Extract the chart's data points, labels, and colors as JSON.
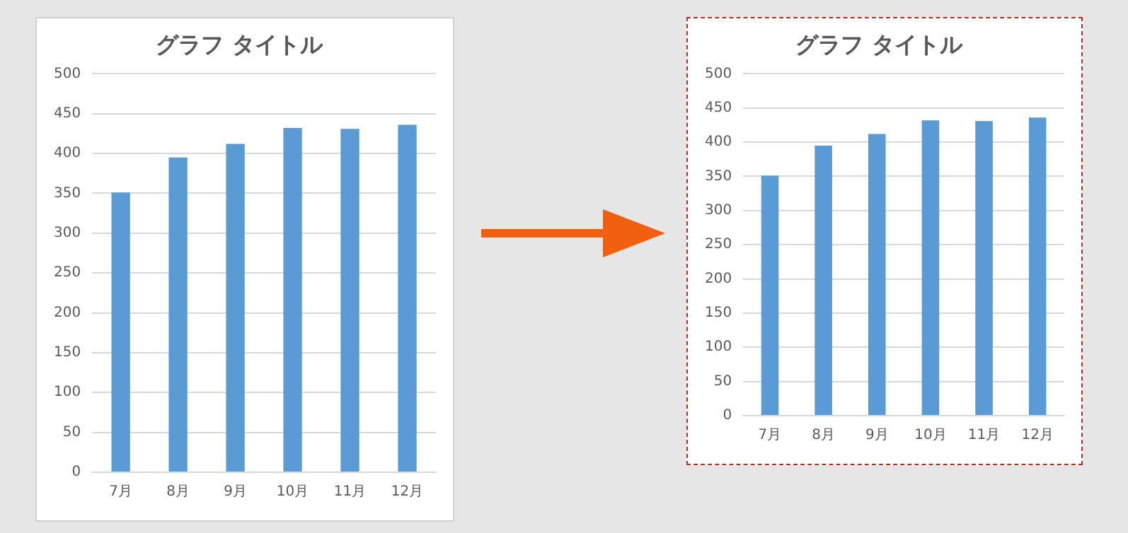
{
  "chart_data": [
    {
      "type": "bar",
      "title": "グラフ タイトル",
      "categories": [
        "7月",
        "8月",
        "9月",
        "10月",
        "11月",
        "12月"
      ],
      "values": [
        351,
        395,
        412,
        432,
        431,
        436
      ],
      "color": "#5b9bd5",
      "ylim": [
        0,
        500
      ],
      "yticks": [
        0,
        50,
        100,
        150,
        200,
        250,
        300,
        350,
        400,
        450,
        500
      ],
      "grid": "y",
      "legend": false
    },
    {
      "type": "bar",
      "title": "グラフ タイトル",
      "categories": [
        "7月",
        "8月",
        "9月",
        "10月",
        "11月",
        "12月"
      ],
      "values": [
        351,
        395,
        412,
        432,
        431,
        436
      ],
      "color": "#5b9bd5",
      "ylim": [
        0,
        500
      ],
      "yticks": [
        0,
        50,
        100,
        150,
        200,
        250,
        300,
        350,
        400,
        450,
        500
      ],
      "grid": "y",
      "legend": false
    }
  ]
}
